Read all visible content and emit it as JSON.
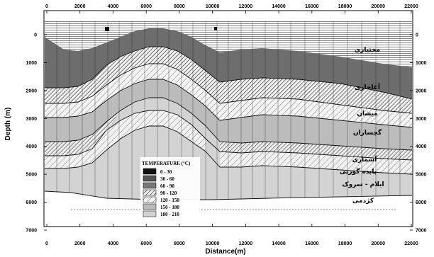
{
  "x_axis": {
    "title": "Distance(m)",
    "ticks": [
      "0",
      "2000",
      "4000",
      "6000",
      "8000",
      "10000",
      "12000",
      "14000",
      "16000",
      "18000",
      "20000",
      "22000"
    ]
  },
  "y_axis": {
    "title": "Depth (m)",
    "ticks": [
      "0",
      "1000",
      "2000",
      "3000",
      "4000",
      "5000",
      "6000",
      "7000"
    ]
  },
  "legend": {
    "title": "TEMPERATURE (°C)",
    "entries": [
      {
        "label": "0 - 30",
        "fill": "#111111"
      },
      {
        "label": "30 - 60",
        "fill": "#555555"
      },
      {
        "label": "60 - 90",
        "fill": "#777777"
      },
      {
        "label": "90 - 120",
        "fill": "hatch-dense"
      },
      {
        "label": "120 - 150",
        "fill": "hatch-sparse"
      },
      {
        "label": "150 - 180",
        "fill": "#bbbbbb"
      },
      {
        "label": "180 - 210",
        "fill": "#d2d2d2"
      }
    ]
  },
  "formations": [
    {
      "key": "aghajari_top",
      "label": "مختیاری"
    },
    {
      "key": "aghajari",
      "label": "آغاجاری"
    },
    {
      "key": "mishan",
      "label": "میشان"
    },
    {
      "key": "gachsaran",
      "label": "گچساران"
    },
    {
      "key": "asmari",
      "label": "آسماری"
    },
    {
      "key": "pabdeh",
      "label": "پابده  گورپی"
    },
    {
      "key": "ilam",
      "label": "ایلام - سروک"
    },
    {
      "key": "kazhdumi",
      "label": "کژدمی"
    }
  ]
}
